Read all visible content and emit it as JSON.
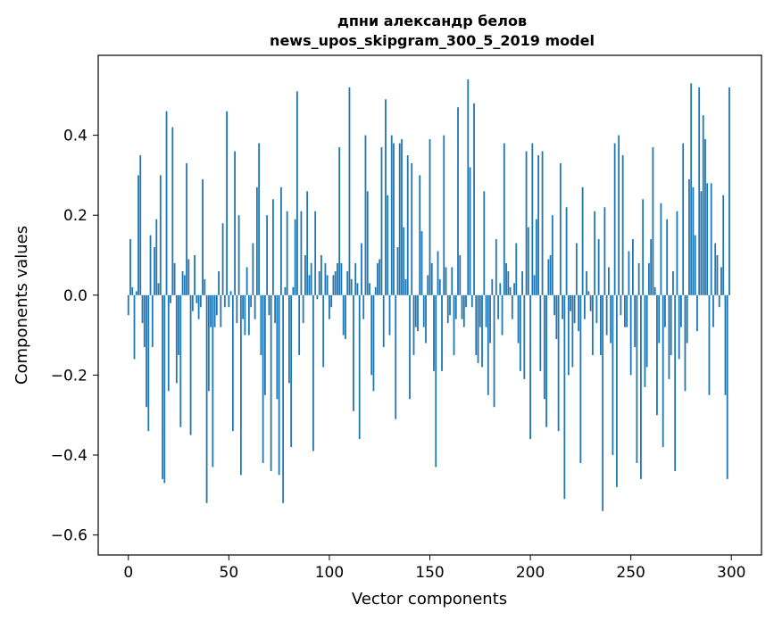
{
  "chart_data": {
    "type": "bar",
    "title_line1": "дпни александр белов",
    "title_line2": "news_upos_skipgram_300_5_2019 model",
    "xlabel": "Vector components",
    "ylabel": "Components values",
    "xlim": [
      -15,
      315
    ],
    "ylim": [
      -0.65,
      0.6
    ],
    "xticks": [
      0,
      50,
      100,
      150,
      200,
      250,
      300
    ],
    "xtick_labels": [
      "0",
      "50",
      "100",
      "150",
      "200",
      "250",
      "300"
    ],
    "yticks": [
      -0.6,
      -0.4,
      -0.2,
      0.0,
      0.2,
      0.4
    ],
    "ytick_labels": [
      "−0.6",
      "−0.4",
      "−0.2",
      "0.0",
      "0.2",
      "0.4"
    ],
    "bar_color": "#1f77b4",
    "grid": false,
    "x_start": 0,
    "values": [
      -0.05,
      0.14,
      0.02,
      -0.16,
      0.01,
      0.3,
      0.35,
      -0.07,
      -0.13,
      -0.28,
      -0.34,
      0.15,
      -0.13,
      0.12,
      0.19,
      0.03,
      0.3,
      -0.46,
      -0.47,
      0.46,
      -0.24,
      -0.02,
      0.42,
      0.08,
      -0.22,
      -0.15,
      -0.33,
      0.06,
      0.05,
      0.33,
      0.09,
      -0.35,
      -0.04,
      0.1,
      -0.02,
      -0.06,
      -0.03,
      0.29,
      0.04,
      -0.52,
      -0.24,
      -0.08,
      -0.43,
      -0.08,
      -0.05,
      0.06,
      -0.08,
      0.18,
      -0.03,
      0.46,
      -0.03,
      0.01,
      -0.34,
      0.36,
      -0.07,
      0.2,
      -0.45,
      -0.06,
      -0.1,
      0.07,
      -0.1,
      -0.03,
      0.13,
      -0.06,
      0.27,
      0.38,
      -0.15,
      -0.42,
      -0.25,
      0.2,
      -0.05,
      -0.44,
      0.24,
      -0.07,
      -0.26,
      -0.45,
      0.27,
      -0.52,
      0.02,
      0.21,
      -0.22,
      -0.38,
      0.02,
      0.19,
      0.51,
      -0.15,
      0.21,
      -0.07,
      0.1,
      0.26,
      0.05,
      0.08,
      -0.39,
      0.21,
      -0.01,
      0.06,
      0.1,
      -0.18,
      0.08,
      0.05,
      -0.06,
      -0.03,
      0.05,
      0.06,
      0.08,
      0.37,
      0.08,
      -0.1,
      -0.11,
      0.06,
      0.52,
      0.04,
      -0.29,
      0.08,
      0.03,
      -0.36,
      0.13,
      -0.06,
      0.4,
      0.26,
      0.03,
      -0.2,
      -0.24,
      0.02,
      0.08,
      0.09,
      0.37,
      -0.13,
      0.49,
      0.25,
      -0.1,
      0.4,
      0.38,
      -0.31,
      0.12,
      0.38,
      0.39,
      0.17,
      0.04,
      0.35,
      -0.26,
      0.33,
      -0.15,
      -0.08,
      -0.09,
      0.3,
      0.16,
      -0.08,
      -0.12,
      0.05,
      0.39,
      0.08,
      -0.19,
      -0.43,
      0.11,
      0.04,
      -0.19,
      0.4,
      0.07,
      -0.07,
      -0.05,
      0.07,
      -0.15,
      -0.06,
      0.47,
      0.1,
      -0.06,
      -0.08,
      -0.03,
      0.54,
      0.32,
      -0.03,
      0.48,
      -0.15,
      -0.17,
      -0.08,
      -0.18,
      0.26,
      -0.08,
      -0.25,
      -0.12,
      0.04,
      -0.28,
      0.14,
      -0.06,
      0.03,
      -0.1,
      0.38,
      0.08,
      0.06,
      0.02,
      -0.06,
      0.03,
      0.13,
      -0.12,
      -0.19,
      0.06,
      -0.21,
      0.36,
      0.17,
      -0.36,
      0.38,
      0.05,
      0.19,
      0.35,
      -0.19,
      0.36,
      -0.26,
      -0.33,
      0.09,
      0.1,
      0.2,
      -0.05,
      -0.11,
      -0.34,
      0.33,
      -0.06,
      -0.51,
      0.22,
      -0.2,
      -0.04,
      -0.18,
      -0.07,
      0.13,
      -0.09,
      -0.42,
      0.27,
      -0.06,
      0.06,
      0.01,
      -0.04,
      -0.15,
      0.21,
      -0.07,
      0.14,
      -0.15,
      -0.54,
      0.22,
      -0.1,
      0.07,
      -0.12,
      -0.4,
      0.38,
      -0.48,
      0.4,
      -0.05,
      0.35,
      -0.08,
      -0.08,
      0.11,
      -0.2,
      0.14,
      -0.13,
      -0.42,
      0.08,
      -0.46,
      0.24,
      -0.23,
      -0.18,
      0.08,
      0.14,
      0.37,
      0.02,
      -0.3,
      -0.12,
      0.23,
      -0.38,
      -0.08,
      0.19,
      -0.21,
      -0.15,
      0.06,
      -0.44,
      0.21,
      -0.16,
      -0.08,
      0.38,
      -0.24,
      -0.12,
      0.29,
      0.53,
      0.27,
      0.15,
      -0.09,
      0.52,
      0.26,
      0.45,
      0.39,
      0.28,
      -0.25,
      0.28,
      -0.08,
      0.13,
      0.1,
      -0.03,
      0.07,
      0.25,
      -0.25,
      -0.46,
      0.52
    ]
  }
}
